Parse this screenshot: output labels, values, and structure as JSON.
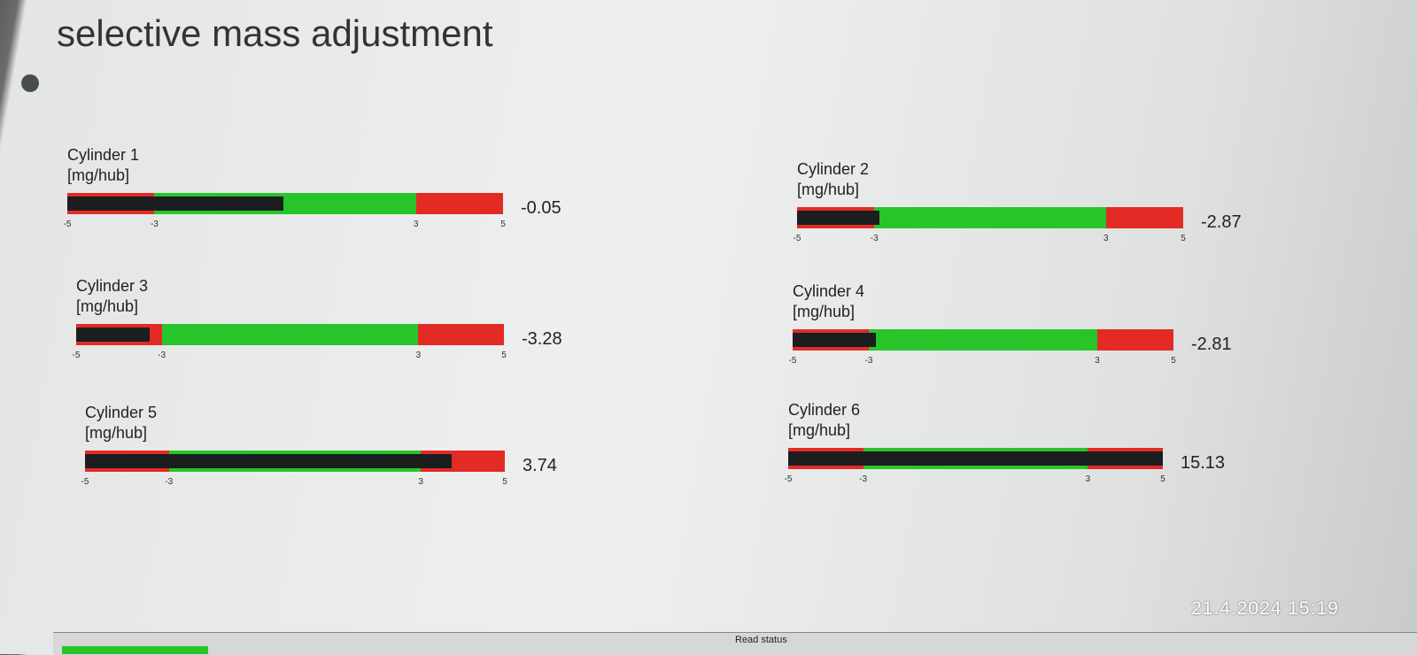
{
  "title": "selective mass adjustment",
  "gauges": [
    {
      "label": "Cylinder 1",
      "unit": "[mg/hub]",
      "value": -0.05
    },
    {
      "label": "Cylinder 2",
      "unit": "[mg/hub]",
      "value": -2.87
    },
    {
      "label": "Cylinder 3",
      "unit": "[mg/hub]",
      "value": -3.28
    },
    {
      "label": "Cylinder 4",
      "unit": "[mg/hub]",
      "value": -2.81
    },
    {
      "label": "Cylinder 5",
      "unit": "[mg/hub]",
      "value": 3.74
    },
    {
      "label": "Cylinder 6",
      "unit": "[mg/hub]",
      "value": 15.13
    }
  ],
  "scale": {
    "lim": [
      -5,
      5
    ],
    "ticks": [
      -5,
      -3,
      3,
      5
    ],
    "zone_colors": [
      "#e42a25",
      "#27c52a",
      "#e42a25"
    ],
    "fill_color": "#1b1d1e"
  },
  "status": "Read status",
  "timestamp": "21.4.2024 15:19"
}
